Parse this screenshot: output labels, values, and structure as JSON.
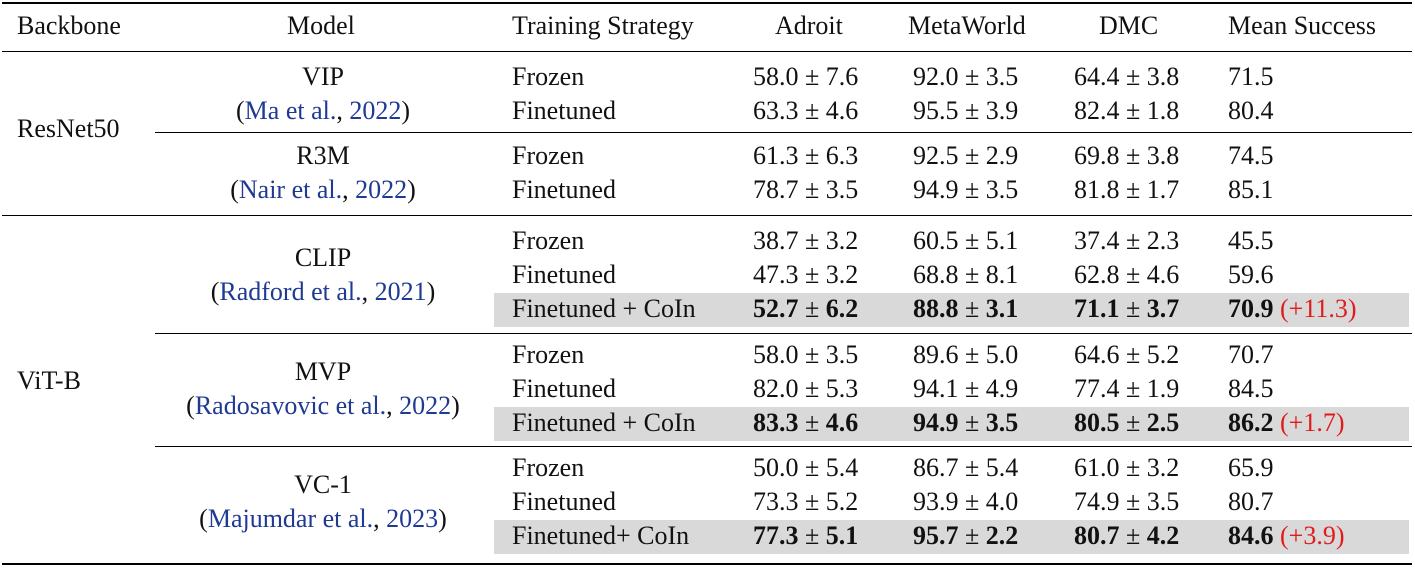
{
  "header": {
    "backbone": "Backbone",
    "model": "Model",
    "strategy": "Training Strategy",
    "adroit": "Adroit",
    "metaworld": "MetaWorld",
    "dmc": "DMC",
    "mean": "Mean Success"
  },
  "groups": [
    {
      "backbone": "ResNet50",
      "models": [
        {
          "name": "VIP",
          "cite_author": "Ma et al.",
          "cite_year": "2022",
          "rows": [
            {
              "strategy": "Frozen",
              "adroit": "58.0",
              "adroit_sd": "7.6",
              "metaworld": "92.0",
              "metaworld_sd": "3.5",
              "dmc": "64.4",
              "dmc_sd": "3.8",
              "mean": "71.5",
              "gain": ""
            },
            {
              "strategy": "Finetuned",
              "adroit": "63.3",
              "adroit_sd": "4.6",
              "metaworld": "95.5",
              "metaworld_sd": "3.9",
              "dmc": "82.4",
              "dmc_sd": "1.8",
              "mean": "80.4",
              "gain": ""
            }
          ]
        },
        {
          "name": "R3M",
          "cite_author": "Nair et al.",
          "cite_year": "2022",
          "rows": [
            {
              "strategy": "Frozen",
              "adroit": "61.3",
              "adroit_sd": "6.3",
              "metaworld": "92.5",
              "metaworld_sd": "2.9",
              "dmc": "69.8",
              "dmc_sd": "3.8",
              "mean": "74.5",
              "gain": ""
            },
            {
              "strategy": "Finetuned",
              "adroit": "78.7",
              "adroit_sd": "3.5",
              "metaworld": "94.9",
              "metaworld_sd": "3.5",
              "dmc": "81.8",
              "dmc_sd": "1.7",
              "mean": "85.1",
              "gain": ""
            }
          ]
        }
      ]
    },
    {
      "backbone": "ViT-B",
      "models": [
        {
          "name": "CLIP",
          "cite_author": "Radford et al.",
          "cite_year": "2021",
          "rows": [
            {
              "strategy": "Frozen",
              "adroit": "38.7",
              "adroit_sd": "3.2",
              "metaworld": "60.5",
              "metaworld_sd": "5.1",
              "dmc": "37.4",
              "dmc_sd": "2.3",
              "mean": "45.5",
              "gain": ""
            },
            {
              "strategy": "Finetuned",
              "adroit": "47.3",
              "adroit_sd": "3.2",
              "metaworld": "68.8",
              "metaworld_sd": "8.1",
              "dmc": "62.8",
              "dmc_sd": "4.6",
              "mean": "59.6",
              "gain": ""
            },
            {
              "strategy": "Finetuned + CoIn",
              "adroit": "52.7",
              "adroit_sd": "6.2",
              "metaworld": "88.8",
              "metaworld_sd": "3.1",
              "dmc": "71.1",
              "dmc_sd": "3.7",
              "mean": "70.9",
              "gain": "(+11.3)"
            }
          ]
        },
        {
          "name": "MVP",
          "cite_author": "Radosavovic et al.",
          "cite_year": "2022",
          "rows": [
            {
              "strategy": "Frozen",
              "adroit": "58.0",
              "adroit_sd": "3.5",
              "metaworld": "89.6",
              "metaworld_sd": "5.0",
              "dmc": "64.6",
              "dmc_sd": "5.2",
              "mean": "70.7",
              "gain": ""
            },
            {
              "strategy": "Finetuned",
              "adroit": "82.0",
              "adroit_sd": "5.3",
              "metaworld": "94.1",
              "metaworld_sd": "4.9",
              "dmc": "77.4",
              "dmc_sd": "1.9",
              "mean": "84.5",
              "gain": ""
            },
            {
              "strategy": "Finetuned + CoIn",
              "adroit": "83.3",
              "adroit_sd": "4.6",
              "metaworld": "94.9",
              "metaworld_sd": "3.5",
              "dmc": "80.5",
              "dmc_sd": "2.5",
              "mean": "86.2",
              "gain": "(+1.7)"
            }
          ]
        },
        {
          "name": "VC-1",
          "cite_author": "Majumdar et al.",
          "cite_year": "2023",
          "rows": [
            {
              "strategy": "Frozen",
              "adroit": "50.0",
              "adroit_sd": "5.4",
              "metaworld": "86.7",
              "metaworld_sd": "5.4",
              "dmc": "61.0",
              "dmc_sd": "3.2",
              "mean": "65.9",
              "gain": ""
            },
            {
              "strategy": "Finetuned",
              "adroit": "73.3",
              "adroit_sd": "5.2",
              "metaworld": "93.9",
              "metaworld_sd": "4.0",
              "dmc": "74.9",
              "dmc_sd": "3.5",
              "mean": "80.7",
              "gain": ""
            },
            {
              "strategy": "Finetuned+ CoIn",
              "adroit": "77.3",
              "adroit_sd": "5.1",
              "metaworld": "95.7",
              "metaworld_sd": "2.2",
              "dmc": "80.7",
              "dmc_sd": "4.2",
              "mean": "84.6",
              "gain": "(+3.9)"
            }
          ]
        }
      ]
    }
  ],
  "symbols": {
    "pm": "±",
    "cite_open": "(",
    "cite_sep": ", ",
    "cite_close": ")"
  },
  "colors": {
    "highlight_row": "#d9d9d9",
    "gain_text": "#e01b1b",
    "citation_text": "#1f3a93"
  }
}
